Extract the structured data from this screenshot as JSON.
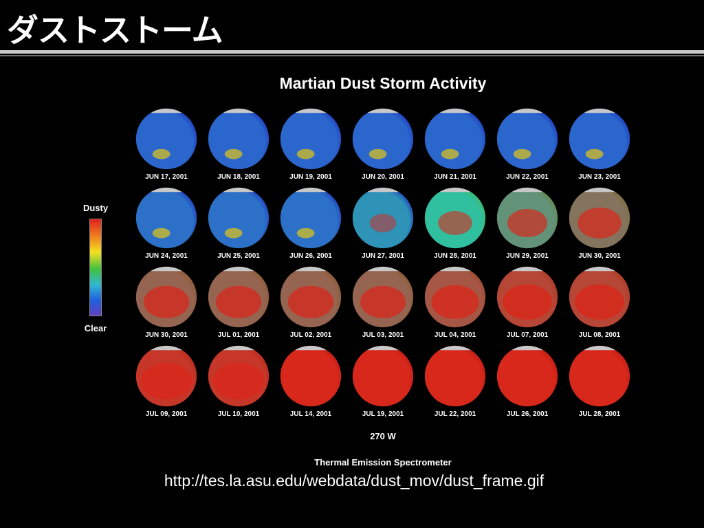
{
  "slide": {
    "title": "ダストストーム",
    "source_url": "http://tes.la.asu.edu/webdata/dust_mov/dust_frame.gif"
  },
  "figure": {
    "title": "Martian Dust Storm Activity",
    "longitude_label": "270 W",
    "instrument_label": "Thermal Emission Spectrometer",
    "color_scale": {
      "top_label": "Dusty",
      "bottom_label": "Clear",
      "colors": [
        "#e0201c",
        "#f08020",
        "#f4e020",
        "#40c040",
        "#30b8d0",
        "#2060e0",
        "#6040c0"
      ]
    },
    "frames": [
      {
        "date": "JUN 17, 2001",
        "dust_level": 0.1
      },
      {
        "date": "JUN 18, 2001",
        "dust_level": 0.1
      },
      {
        "date": "JUN 19, 2001",
        "dust_level": 0.1
      },
      {
        "date": "JUN 20, 2001",
        "dust_level": 0.1
      },
      {
        "date": "JUN 21, 2001",
        "dust_level": 0.1
      },
      {
        "date": "JUN 22, 2001",
        "dust_level": 0.1
      },
      {
        "date": "JUN 23, 2001",
        "dust_level": 0.1
      },
      {
        "date": "JUN 24, 2001",
        "dust_level": 0.15
      },
      {
        "date": "JUN 25, 2001",
        "dust_level": 0.15
      },
      {
        "date": "JUN 26, 2001",
        "dust_level": 0.15
      },
      {
        "date": "JUN 27, 2001",
        "dust_level": 0.3
      },
      {
        "date": "JUN 28, 2001",
        "dust_level": 0.5
      },
      {
        "date": "JUN 29, 2001",
        "dust_level": 0.65
      },
      {
        "date": "JUN 30, 2001",
        "dust_level": 0.75
      },
      {
        "date": "JUN 30, 2001",
        "dust_level": 0.8
      },
      {
        "date": "JUL 01, 2001",
        "dust_level": 0.8
      },
      {
        "date": "JUL 02, 2001",
        "dust_level": 0.8
      },
      {
        "date": "JUL 03, 2001",
        "dust_level": 0.8
      },
      {
        "date": "JUL 04, 2001",
        "dust_level": 0.85
      },
      {
        "date": "JUL 07, 2001",
        "dust_level": 0.9
      },
      {
        "date": "JUL 08, 2001",
        "dust_level": 0.9
      },
      {
        "date": "JUL 09, 2001",
        "dust_level": 0.95
      },
      {
        "date": "JUL 10, 2001",
        "dust_level": 0.95
      },
      {
        "date": "JUL 14, 2001",
        "dust_level": 1
      },
      {
        "date": "JUL 19, 2001",
        "dust_level": 1
      },
      {
        "date": "JUL 22, 2001",
        "dust_level": 1
      },
      {
        "date": "JUL 26, 2001",
        "dust_level": 1
      },
      {
        "date": "JUL 28, 2001",
        "dust_level": 1
      }
    ]
  }
}
